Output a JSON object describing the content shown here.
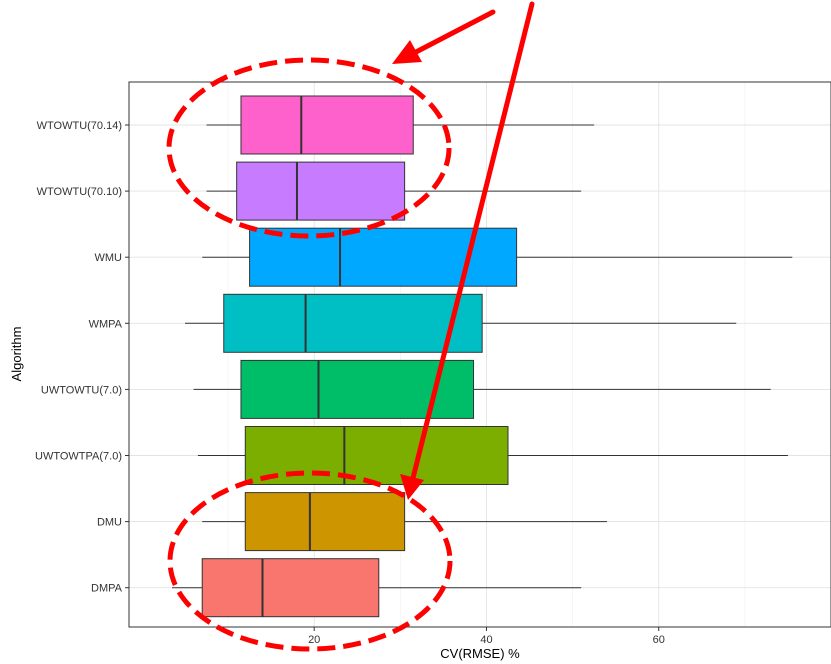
{
  "chart_data": {
    "type": "boxplot",
    "orientation": "horizontal",
    "title": "",
    "xlabel": "CV(RMSE) %",
    "ylabel": "Algorithm",
    "xlim": [
      -1.5,
      80
    ],
    "xticks": [
      20,
      40,
      60
    ],
    "grid": true,
    "legend": "none",
    "categories": [
      "WTOWTU(70.14)",
      "WTOWTU(70.10)",
      "WMU",
      "WMPA",
      "UWTOWTU(7.0)",
      "UWTOWTPA(7.0)",
      "DMU",
      "DMPA"
    ],
    "series": [
      {
        "category": "WTOWTU(70.14)",
        "whisker_low": 7.5,
        "q1": 11.5,
        "median": 18.5,
        "q3": 31.5,
        "whisker_high": 52.5,
        "color": "#FF61CC"
      },
      {
        "category": "WTOWTU(70.10)",
        "whisker_low": 7.5,
        "q1": 11.0,
        "median": 18.0,
        "q3": 30.5,
        "whisker_high": 51.0,
        "color": "#C77CFF"
      },
      {
        "category": "WMU",
        "whisker_low": 7.0,
        "q1": 12.5,
        "median": 23.0,
        "q3": 43.5,
        "whisker_high": 75.5,
        "color": "#00A9FF"
      },
      {
        "category": "WMPA",
        "whisker_low": 5.0,
        "q1": 9.5,
        "median": 19.0,
        "q3": 39.5,
        "whisker_high": 69.0,
        "color": "#00BFC4"
      },
      {
        "category": "UWTOWTU(7.0)",
        "whisker_low": 6.0,
        "q1": 11.5,
        "median": 20.5,
        "q3": 38.5,
        "whisker_high": 73.0,
        "color": "#00BE67"
      },
      {
        "category": "UWTOWTPA(7.0)",
        "whisker_low": 6.5,
        "q1": 12.0,
        "median": 23.5,
        "q3": 42.5,
        "whisker_high": 75.0,
        "color": "#7CAE00"
      },
      {
        "category": "DMU",
        "whisker_low": 7.0,
        "q1": 12.0,
        "median": 19.5,
        "q3": 30.5,
        "whisker_high": 54.0,
        "color": "#CD9600"
      },
      {
        "category": "DMPA",
        "whisker_low": 3.5,
        "q1": 7.0,
        "median": 14.0,
        "q3": 27.5,
        "whisker_high": 51.0,
        "color": "#F8766D"
      }
    ],
    "annotations": [
      {
        "type": "dashed-ellipse",
        "color": "#FF0000",
        "encloses": [
          "WTOWTU(70.14)",
          "WTOWTU(70.10)"
        ]
      },
      {
        "type": "dashed-ellipse",
        "color": "#FF0000",
        "encloses": [
          "DMU",
          "DMPA"
        ]
      },
      {
        "type": "arrow",
        "color": "#FF0000",
        "points_to": "upper ellipse"
      },
      {
        "type": "arrow",
        "color": "#FF0000",
        "points_to": "lower ellipse"
      }
    ]
  }
}
